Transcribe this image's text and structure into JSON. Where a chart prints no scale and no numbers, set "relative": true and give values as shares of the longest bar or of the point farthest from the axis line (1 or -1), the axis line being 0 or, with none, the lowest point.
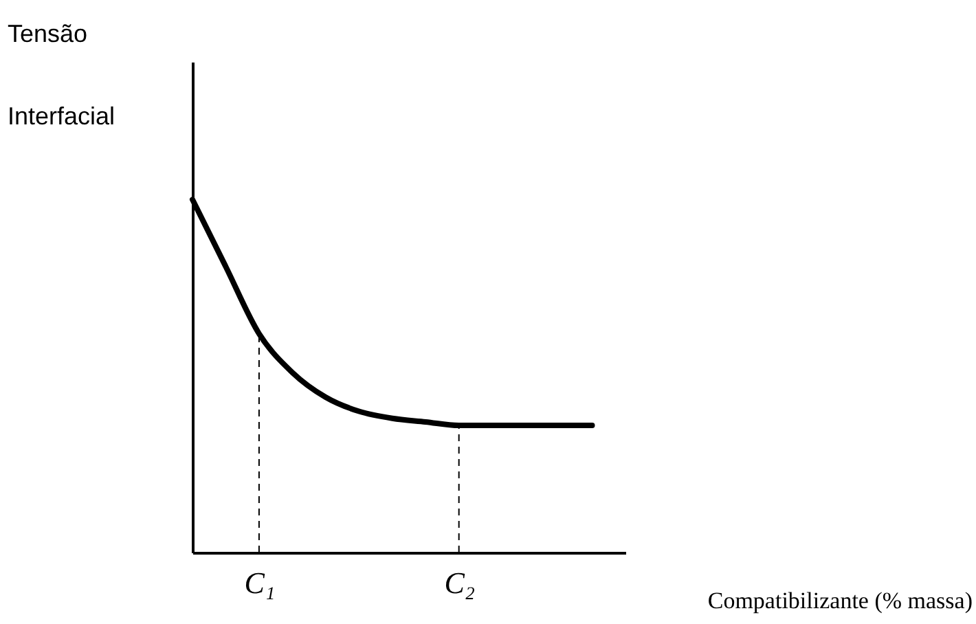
{
  "chart_data": {
    "type": "line",
    "relative": true,
    "xlabel": "Compatibilizante (% massa)",
    "ylabel": "Tensão Interfacial",
    "categories": [
      null,
      null,
      "C₁",
      null,
      null,
      null,
      null,
      null,
      "C₂",
      null,
      null,
      null,
      null
    ],
    "series": [
      {
        "color": "#000000",
        "values": [
          1,
          0.81,
          0.62,
          0.51,
          0.44,
          0.4,
          0.38,
          0.37,
          0.36,
          0.36,
          0.36,
          0.36,
          0.36
        ]
      }
    ],
    "ref_lines": [
      {
        "axis": "x",
        "value": "C₁",
        "label": null,
        "line_style": "dashed",
        "color": "#000000"
      },
      {
        "axis": "x",
        "value": "C₂",
        "label": null,
        "line_style": "dashed",
        "color": "#000000"
      }
    ],
    "grid": false,
    "marker": "none",
    "line_style": "solid"
  }
}
